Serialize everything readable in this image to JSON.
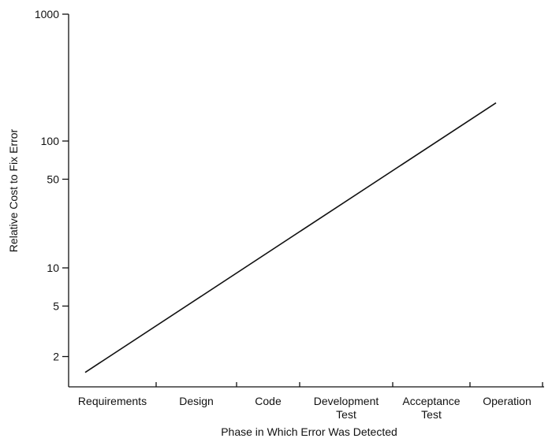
{
  "chart_data": {
    "type": "line",
    "title": "",
    "xlabel": "Phase in Which Error Was Detected",
    "ylabel": "Relative Cost to Fix Error",
    "yscale": "log",
    "ylim": [
      1,
      1000
    ],
    "yticks": [
      1000,
      100,
      50,
      10,
      5,
      2
    ],
    "ytick_labels": [
      "1000",
      "100",
      "50",
      "10",
      "5",
      "2"
    ],
    "categories": [
      [
        "Requirements"
      ],
      [
        "Design"
      ],
      [
        "Code"
      ],
      [
        "Development",
        "Test"
      ],
      [
        "Acceptance",
        "Test"
      ],
      [
        "Operation"
      ]
    ],
    "series": [
      {
        "x": [
          0,
          5
        ],
        "values": [
          1.5,
          200
        ]
      }
    ],
    "grid": false,
    "legend": "none"
  }
}
